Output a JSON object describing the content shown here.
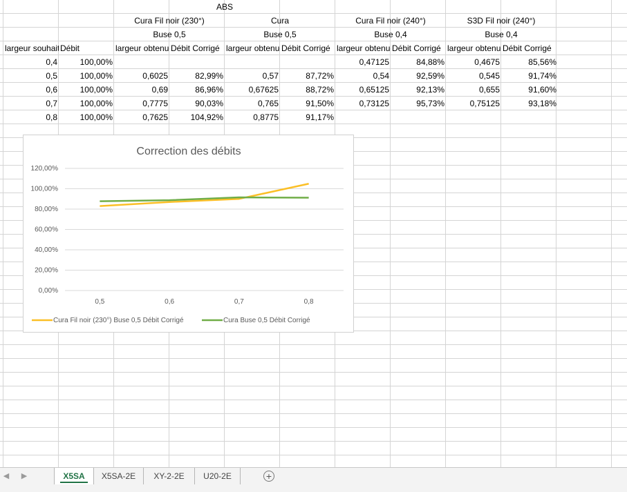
{
  "sheet": {
    "title": "ABS",
    "groups": [
      {
        "name": "Cura Fil noir (230°)",
        "nozzle": "Buse 0,5"
      },
      {
        "name": "Cura",
        "nozzle": "Buse 0,5"
      },
      {
        "name": "Cura Fil noir (240°)",
        "nozzle": "Buse 0,4"
      },
      {
        "name": "S3D Fil noir (240°)",
        "nozzle": "Buse 0,4"
      }
    ],
    "headers": [
      "largeur souhaitée",
      "Débit",
      "largeur obtenue",
      "Débit Corrigé",
      "largeur obtenue",
      "Débit Corrigé",
      "largeur obtenue",
      "Débit Corrigé",
      "largeur obtenue",
      "Débit Corrigé"
    ],
    "rows": [
      [
        "0,4",
        "100,00%",
        "",
        "",
        "",
        "",
        "0,47125",
        "84,88%",
        "0,4675",
        "85,56%"
      ],
      [
        "0,5",
        "100,00%",
        "0,6025",
        "82,99%",
        "0,57",
        "87,72%",
        "0,54",
        "92,59%",
        "0,545",
        "91,74%"
      ],
      [
        "0,6",
        "100,00%",
        "0,69",
        "86,96%",
        "0,67625",
        "88,72%",
        "0,65125",
        "92,13%",
        "0,655",
        "91,60%"
      ],
      [
        "0,7",
        "100,00%",
        "0,7775",
        "90,03%",
        "0,765",
        "91,50%",
        "0,73125",
        "95,73%",
        "0,75125",
        "93,18%"
      ],
      [
        "0,8",
        "100,00%",
        "0,7625",
        "104,92%",
        "0,8775",
        "91,17%",
        "",
        "",
        "",
        ""
      ]
    ]
  },
  "chart_data": {
    "type": "line",
    "title": "Correction des débits",
    "categories": [
      "0,5",
      "0,6",
      "0,7",
      "0,8"
    ],
    "y_ticks": [
      "0,00%",
      "20,00%",
      "40,00%",
      "60,00%",
      "80,00%",
      "100,00%",
      "120,00%"
    ],
    "ylim": [
      0,
      120
    ],
    "grid": true,
    "legend_position": "bottom",
    "series": [
      {
        "name": "Cura Fil noir (230°) Buse 0,5 Débit Corrigé",
        "color": "#fbbf26",
        "values": [
          82.99,
          86.96,
          90.03,
          104.92
        ]
      },
      {
        "name": "Cura Buse 0,5 Débit Corrigé",
        "color": "#70ad47",
        "values": [
          87.72,
          88.72,
          91.5,
          91.17
        ]
      }
    ]
  },
  "tabs": [
    {
      "label": "X5SA",
      "active": true
    },
    {
      "label": "X5SA-2E",
      "active": false
    },
    {
      "label": "XY-2-2E",
      "active": false
    },
    {
      "label": "U20-2E",
      "active": false
    }
  ],
  "add_sheet_symbol": "+",
  "colors": {
    "accent": "#217346",
    "gridline": "#d4d4d4"
  }
}
